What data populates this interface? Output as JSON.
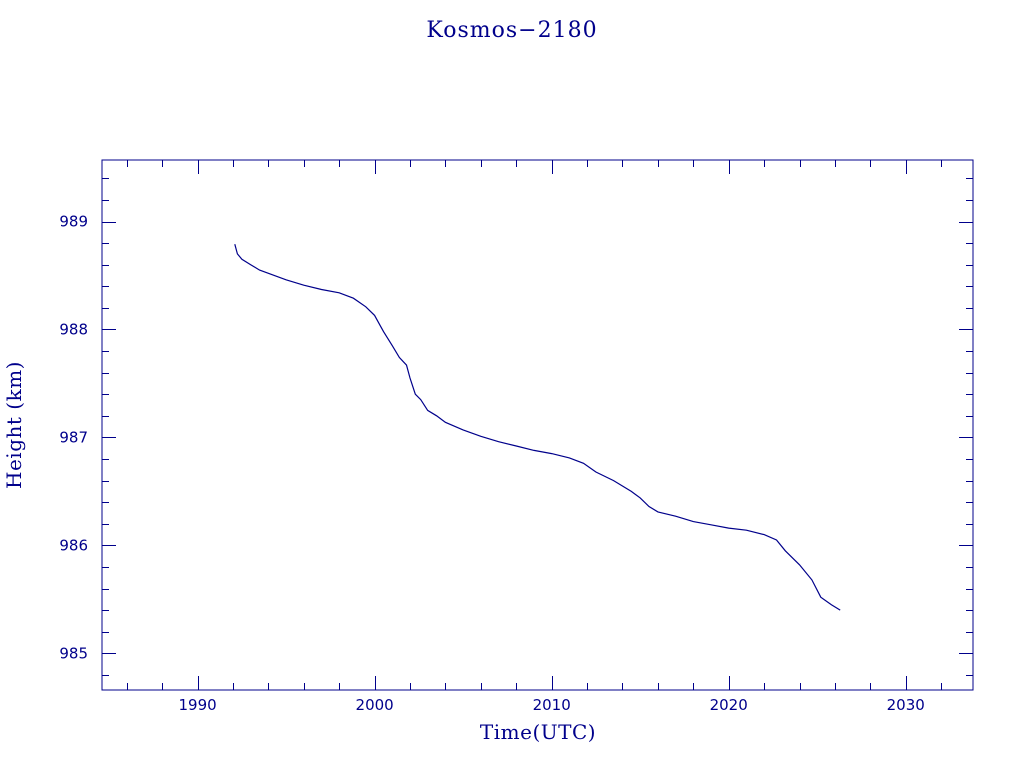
{
  "chart_data": {
    "type": "line",
    "title": "Kosmos−2180",
    "xlabel": "Time(UTC)",
    "ylabel": "Height (km)",
    "xlim": [
      1984.6,
      2033.8
    ],
    "ylim": [
      984.66,
      989.57
    ],
    "xticks": [
      1990,
      2000,
      2010,
      2020,
      2030
    ],
    "yticks": [
      985,
      986,
      987,
      988,
      989
    ],
    "grid": false,
    "color": "#00008b",
    "series": [
      {
        "x": [
          1992.1,
          1992.25,
          1992.5,
          1993.0,
          1993.5,
          1994.0,
          1995.0,
          1996.0,
          1997.0,
          1998.0,
          1998.8,
          1999.5,
          2000.0,
          2000.5,
          2001.0,
          2001.4,
          2001.8,
          2002.0,
          2002.3,
          2002.6,
          2003.0,
          2003.5,
          2004.0,
          2005.0,
          2006.0,
          2007.0,
          2008.0,
          2009.0,
          2010.0,
          2011.0,
          2011.8,
          2012.5,
          2013.5,
          2014.5,
          2015.0,
          2015.5,
          2016.0,
          2017.0,
          2018.0,
          2019.0,
          2020.0,
          2021.0,
          2022.0,
          2022.7,
          2023.2,
          2024.0,
          2024.7,
          2025.2,
          2025.8,
          2026.3
        ],
        "y": [
          988.79,
          988.7,
          988.65,
          988.6,
          988.55,
          988.52,
          988.46,
          988.41,
          988.37,
          988.34,
          988.29,
          988.21,
          988.13,
          987.98,
          987.85,
          987.74,
          987.67,
          987.55,
          987.4,
          987.35,
          987.25,
          987.2,
          987.14,
          987.07,
          987.01,
          986.96,
          986.92,
          986.88,
          986.85,
          986.81,
          986.76,
          986.68,
          986.6,
          986.5,
          986.44,
          986.36,
          986.31,
          986.27,
          986.22,
          986.19,
          986.16,
          986.14,
          986.1,
          986.05,
          985.95,
          985.82,
          985.68,
          985.52,
          985.45,
          985.4
        ]
      }
    ]
  }
}
